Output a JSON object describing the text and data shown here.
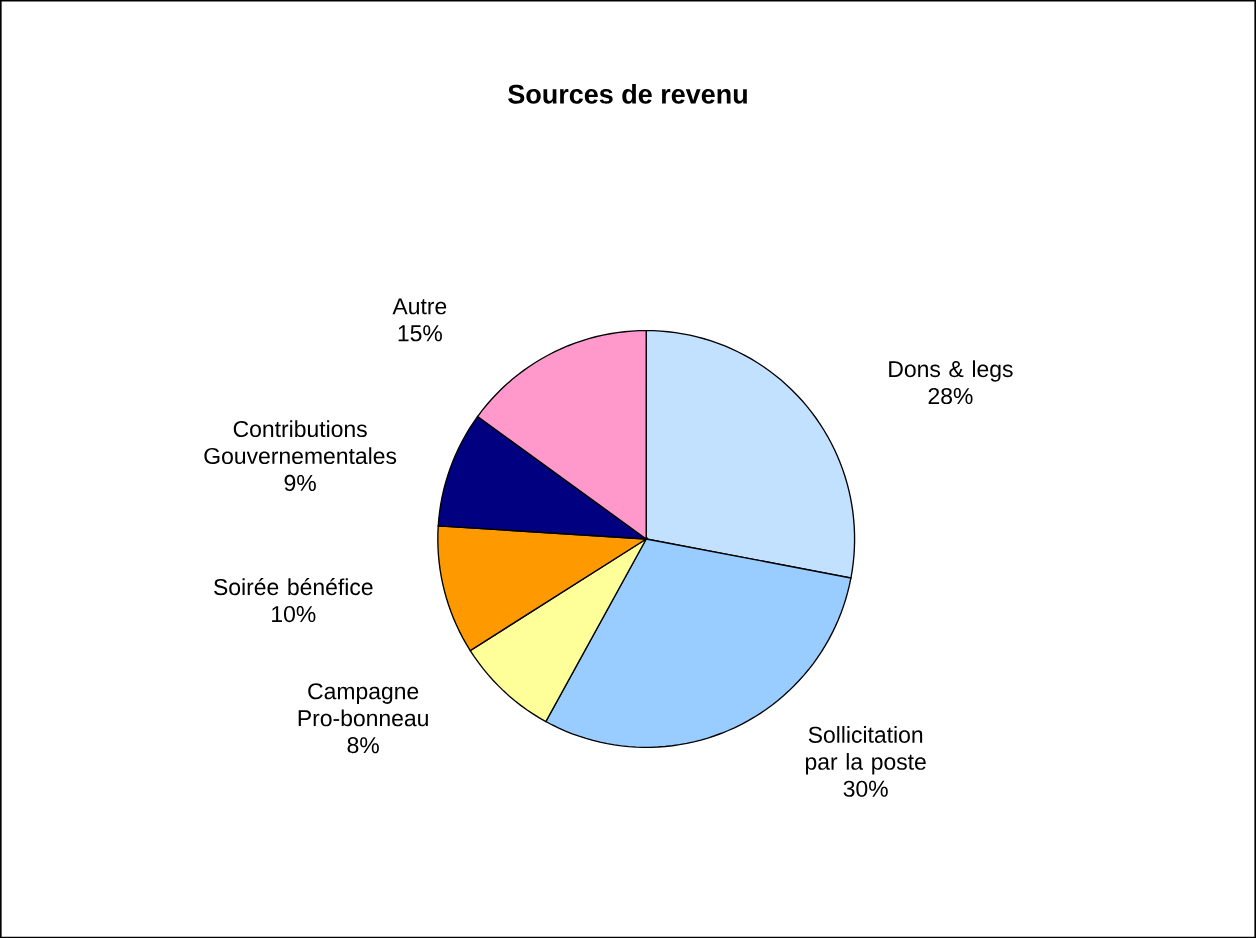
{
  "chart_data": {
    "type": "pie",
    "title": "Sources de revenu",
    "categories": [
      "Dons & legs",
      "Sollicitation par la poste",
      "Campagne Pro-bonneau",
      "Soirée bénéfice",
      "Contributions Gouvernementales",
      "Autre"
    ],
    "values": [
      28,
      30,
      8,
      10,
      9,
      15
    ],
    "value_labels": [
      "28%",
      "30%",
      "8%",
      "10%",
      "9%",
      "15%"
    ],
    "colors": [
      "#c2e0ff",
      "#99ccff",
      "#ffff99",
      "#ff9900",
      "#000080",
      "#ff99cc"
    ]
  }
}
